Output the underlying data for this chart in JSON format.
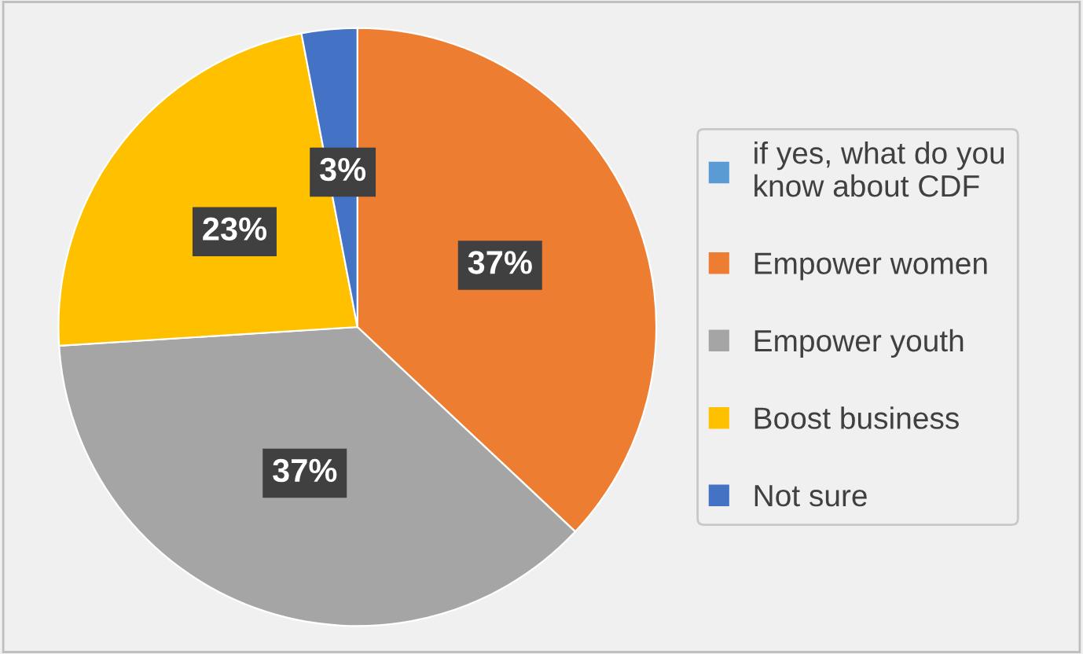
{
  "chart_data": {
    "type": "pie",
    "categories": [
      "if yes, what do you know about CDF",
      "Empower women",
      "Empower youth",
      "Boost business",
      "Not sure"
    ],
    "values": [
      0,
      37,
      37,
      23,
      3
    ],
    "colors": [
      "#5b9bd5",
      "#ed7d31",
      "#a5a5a5",
      "#ffc000",
      "#4472c4"
    ],
    "value_labels": [
      null,
      "37%",
      "37%",
      "23%",
      "3%"
    ],
    "legend": "right"
  }
}
